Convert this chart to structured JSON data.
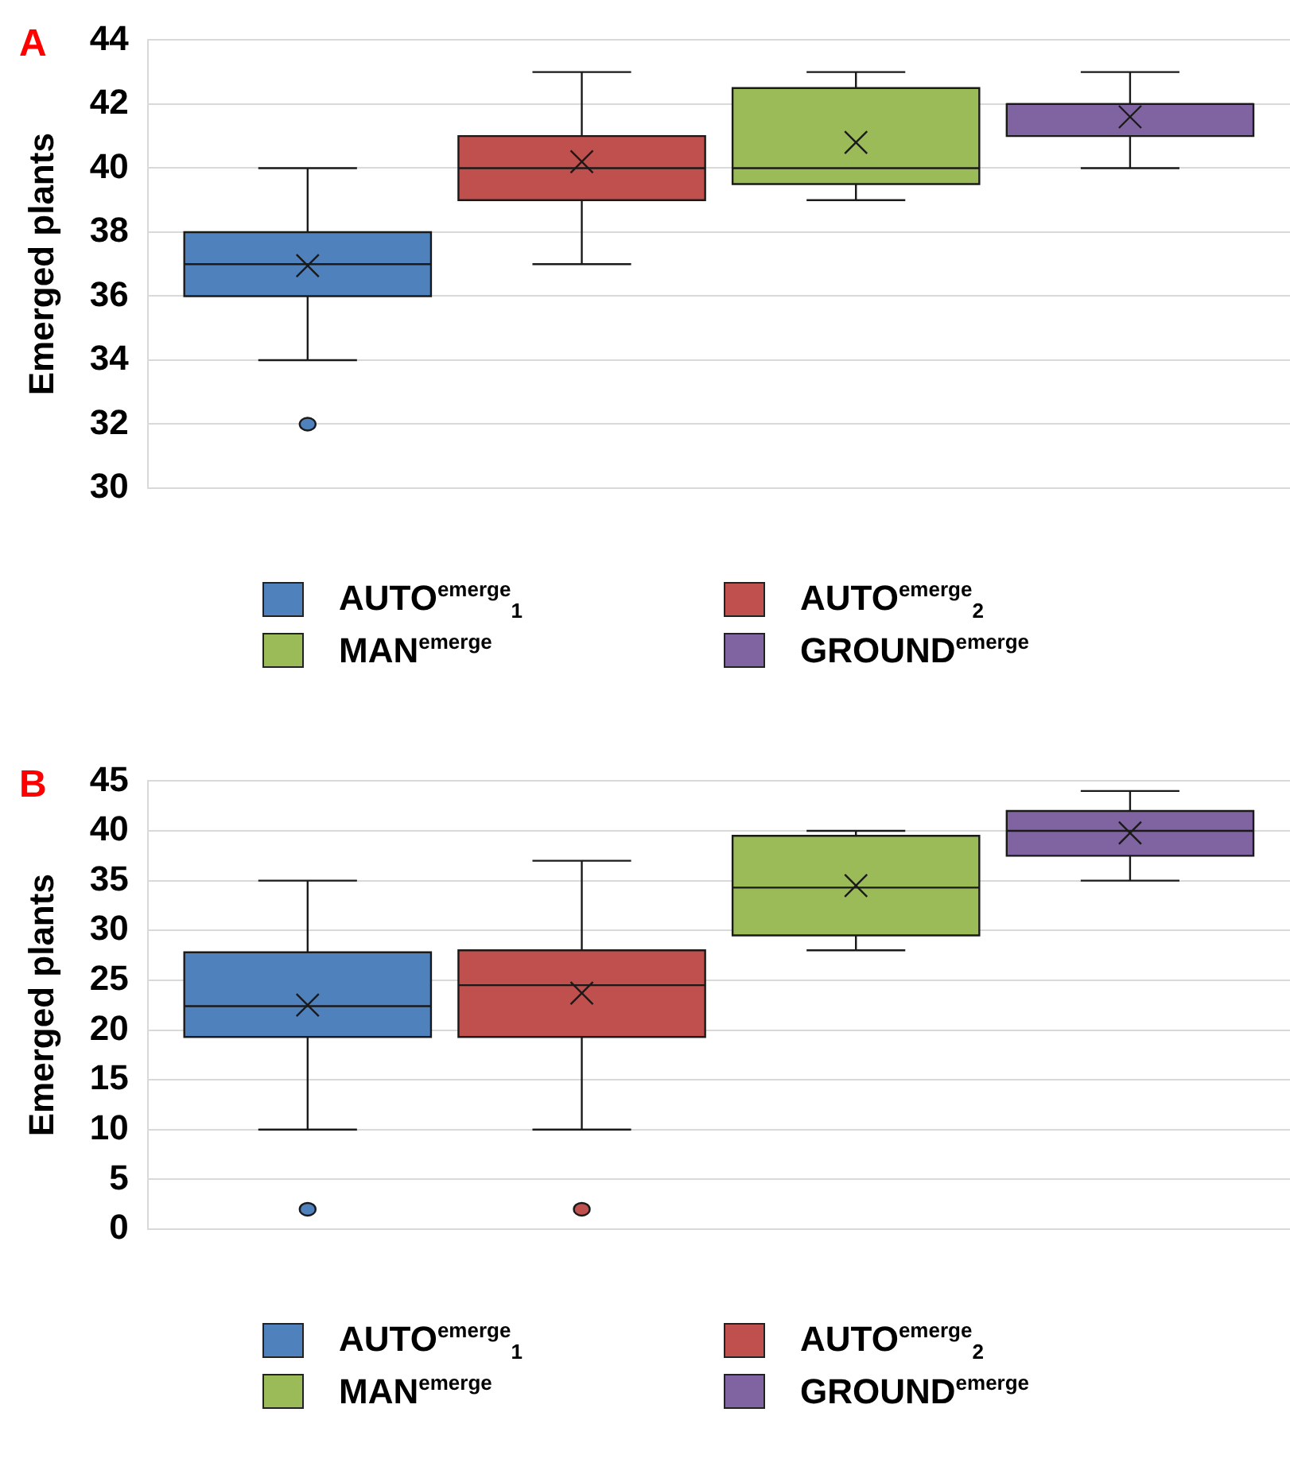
{
  "chart_data": [
    {
      "type": "box",
      "title": "A",
      "ylabel": "Emerged plants",
      "categories": [
        null
      ],
      "ylim": [
        30,
        44
      ],
      "yticks": [
        30,
        32,
        34,
        36,
        38,
        40,
        42,
        44
      ],
      "grid": "y",
      "legend": "bottom",
      "series": [
        {
          "name": "AUTO$^{emerge}$$_{1}$",
          "color": "#4f81bd",
          "boxes": [
            {
              "low": 34,
              "q1": 36,
              "median": 37,
              "q3": 38,
              "high": 40,
              "mean": 36.95,
              "outliers": [
                32
              ]
            }
          ]
        },
        {
          "name": "AUTO$^{emerge}$$_{2}$",
          "color": "#c0504d",
          "boxes": [
            {
              "low": 37,
              "q1": 39,
              "median": 40,
              "q3": 41,
              "high": 43,
              "mean": 40.2
            }
          ]
        },
        {
          "name": "MAN$^{emerge}$",
          "color": "#9bbb59",
          "boxes": [
            {
              "low": 39,
              "q1": 39.5,
              "median": 40,
              "q3": 42.5,
              "high": 43,
              "mean": 40.8
            }
          ]
        },
        {
          "name": "GROUND$^{emerge}$",
          "color": "#8064a2",
          "boxes": [
            {
              "low": 40,
              "q1": 41,
              "median": 42,
              "q3": 42,
              "high": 43,
              "mean": 41.6
            }
          ]
        }
      ]
    },
    {
      "type": "box",
      "title": "B",
      "ylabel": "Emerged plants",
      "categories": [
        null
      ],
      "ylim": [
        0,
        45
      ],
      "yticks": [
        0,
        5,
        10,
        15,
        20,
        25,
        30,
        35,
        40,
        45
      ],
      "grid": "y",
      "legend": "bottom",
      "series": [
        {
          "name": "AUTO$^{emerge}$$_{1}$",
          "color": "#4f81bd",
          "boxes": [
            {
              "low": 10,
              "q1": 19.3,
              "median": 22.4,
              "q3": 27.8,
              "high": 35,
              "mean": 22.5,
              "outliers": [
                2
              ]
            }
          ]
        },
        {
          "name": "AUTO$^{emerge}$$_{2}$",
          "color": "#c0504d",
          "boxes": [
            {
              "low": 10,
              "q1": 19.3,
              "median": 24.5,
              "q3": 28,
              "high": 37,
              "mean": 23.7,
              "outliers": [
                2
              ]
            }
          ]
        },
        {
          "name": "MAN$^{emerge}$",
          "color": "#9bbb59",
          "boxes": [
            {
              "low": 28,
              "q1": 29.5,
              "median": 34.3,
              "q3": 39.5,
              "high": 40,
              "mean": 34.5
            }
          ]
        },
        {
          "name": "GROUND$^{emerge}$",
          "color": "#8064a2",
          "boxes": [
            {
              "low": 35,
              "q1": 37.5,
              "median": 40,
              "q3": 42,
              "high": 44,
              "mean": 39.8
            }
          ]
        }
      ]
    }
  ]
}
